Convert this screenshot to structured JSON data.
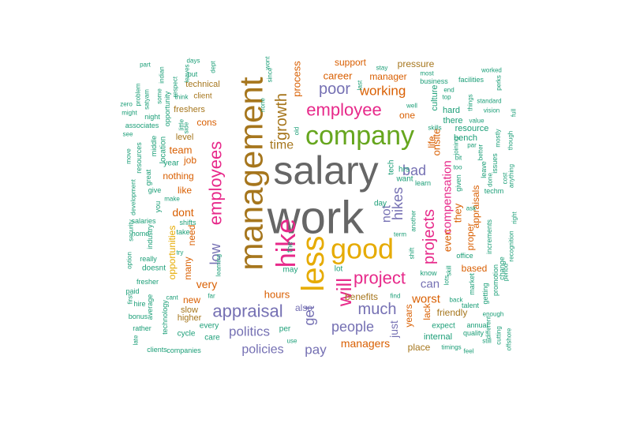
{
  "palette": {
    "teal": "#1b9e77",
    "orange": "#d95f02",
    "purple": "#7570b3",
    "pink": "#e7298a",
    "green": "#66a61e",
    "gold": "#e6ab02",
    "brown": "#a6761d",
    "gray": "#666666"
  },
  "words": [
    {
      "text": "salary",
      "color": "gray"
    },
    {
      "text": "work",
      "color": "gray"
    },
    {
      "text": "management",
      "color": "brown"
    },
    {
      "text": "company",
      "color": "green"
    },
    {
      "text": "good",
      "color": "gold"
    },
    {
      "text": "less",
      "color": "gold"
    },
    {
      "text": "hike",
      "color": "pink"
    },
    {
      "text": "employee",
      "color": "pink"
    },
    {
      "text": "employees",
      "color": "pink"
    },
    {
      "text": "project",
      "color": "pink"
    },
    {
      "text": "projects",
      "color": "pink"
    },
    {
      "text": "will",
      "color": "pink"
    },
    {
      "text": "appraisal",
      "color": "purple"
    },
    {
      "text": "much",
      "color": "purple"
    },
    {
      "text": "people",
      "color": "purple"
    },
    {
      "text": "politics",
      "color": "purple"
    },
    {
      "text": "poor",
      "color": "purple"
    },
    {
      "text": "bad",
      "color": "purple"
    },
    {
      "text": "hikes",
      "color": "purple"
    },
    {
      "text": "growth",
      "color": "brown"
    },
    {
      "text": "get",
      "color": "purple"
    },
    {
      "text": "low",
      "color": "purple"
    },
    {
      "text": "working",
      "color": "orange"
    },
    {
      "text": "time",
      "color": "brown"
    },
    {
      "text": "process",
      "color": "orange"
    },
    {
      "text": "career",
      "color": "orange"
    },
    {
      "text": "support",
      "color": "orange"
    },
    {
      "text": "manager",
      "color": "orange"
    },
    {
      "text": "pressure",
      "color": "brown"
    },
    {
      "text": "one",
      "color": "orange"
    },
    {
      "text": "compensation",
      "color": "pink"
    },
    {
      "text": "even",
      "color": "orange"
    },
    {
      "text": "onsite",
      "color": "orange"
    },
    {
      "text": "life",
      "color": "orange"
    },
    {
      "text": "dont",
      "color": "orange"
    },
    {
      "text": "like",
      "color": "orange"
    },
    {
      "text": "team",
      "color": "orange"
    },
    {
      "text": "nothing",
      "color": "orange"
    },
    {
      "text": "cons",
      "color": "orange"
    },
    {
      "text": "job",
      "color": "orange"
    },
    {
      "text": "level",
      "color": "brown"
    },
    {
      "text": "freshers",
      "color": "brown"
    },
    {
      "text": "technical",
      "color": "brown"
    },
    {
      "text": "client",
      "color": "brown"
    },
    {
      "text": "opportunities",
      "color": "gold"
    },
    {
      "text": "many",
      "color": "orange"
    },
    {
      "text": "need",
      "color": "orange"
    },
    {
      "text": "very",
      "color": "orange"
    },
    {
      "text": "new",
      "color": "orange"
    },
    {
      "text": "slow",
      "color": "brown"
    },
    {
      "text": "higher",
      "color": "brown"
    },
    {
      "text": "hours",
      "color": "orange"
    },
    {
      "text": "also",
      "color": "purple"
    },
    {
      "text": "benefits",
      "color": "brown"
    },
    {
      "text": "can",
      "color": "purple"
    },
    {
      "text": "worst",
      "color": "orange"
    },
    {
      "text": "friendly",
      "color": "brown"
    },
    {
      "text": "managers",
      "color": "orange"
    },
    {
      "text": "policies",
      "color": "purple"
    },
    {
      "text": "pay",
      "color": "purple"
    },
    {
      "text": "internal",
      "color": "teal"
    },
    {
      "text": "place",
      "color": "brown"
    },
    {
      "text": "years",
      "color": "orange"
    },
    {
      "text": "just",
      "color": "purple"
    },
    {
      "text": "not",
      "color": "purple"
    },
    {
      "text": "they",
      "color": "orange"
    },
    {
      "text": "appraisals",
      "color": "orange"
    },
    {
      "text": "proper",
      "color": "orange"
    },
    {
      "text": "based",
      "color": "orange"
    },
    {
      "text": "bench",
      "color": "teal"
    },
    {
      "text": "resource",
      "color": "teal"
    },
    {
      "text": "culture",
      "color": "teal"
    },
    {
      "text": "hard",
      "color": "teal"
    },
    {
      "text": "there",
      "color": "teal"
    },
    {
      "text": "tech",
      "color": "teal"
    },
    {
      "text": "want",
      "color": "teal"
    },
    {
      "text": "hrs",
      "color": "teal"
    },
    {
      "text": "learn",
      "color": "teal"
    },
    {
      "text": "day",
      "color": "teal"
    },
    {
      "text": "term",
      "color": "teal"
    },
    {
      "text": "know",
      "color": "teal"
    },
    {
      "text": "lack",
      "color": "orange"
    },
    {
      "text": "expect",
      "color": "teal"
    },
    {
      "text": "every",
      "color": "teal"
    },
    {
      "text": "care",
      "color": "teal"
    },
    {
      "text": "per",
      "color": "teal"
    },
    {
      "text": "cycle",
      "color": "teal"
    },
    {
      "text": "quality",
      "color": "teal"
    },
    {
      "text": "annual",
      "color": "teal"
    },
    {
      "text": "office",
      "color": "teal"
    },
    {
      "text": "increments",
      "color": "teal"
    },
    {
      "text": "change",
      "color": "teal"
    },
    {
      "text": "promotion",
      "color": "teal"
    },
    {
      "text": "getting",
      "color": "teal"
    },
    {
      "text": "market",
      "color": "teal"
    },
    {
      "text": "talent",
      "color": "teal"
    },
    {
      "text": "back",
      "color": "teal"
    },
    {
      "text": "enough",
      "color": "teal"
    },
    {
      "text": "facilities",
      "color": "teal"
    },
    {
      "text": "business",
      "color": "teal"
    },
    {
      "text": "skills",
      "color": "teal"
    },
    {
      "text": "stay",
      "color": "teal"
    },
    {
      "text": "worked",
      "color": "teal"
    },
    {
      "text": "vision",
      "color": "teal"
    },
    {
      "text": "standard",
      "color": "teal"
    },
    {
      "text": "leave",
      "color": "teal"
    },
    {
      "text": "issues",
      "color": "teal"
    },
    {
      "text": "better",
      "color": "teal"
    },
    {
      "text": "done",
      "color": "teal"
    },
    {
      "text": "cost",
      "color": "teal"
    },
    {
      "text": "mostly",
      "color": "teal"
    },
    {
      "text": "techm",
      "color": "teal"
    },
    {
      "text": "though",
      "color": "teal"
    },
    {
      "text": "anything",
      "color": "teal"
    },
    {
      "text": "perks",
      "color": "teal"
    },
    {
      "text": "full",
      "color": "teal"
    },
    {
      "text": "given",
      "color": "teal"
    },
    {
      "text": "most",
      "color": "teal"
    },
    {
      "text": "well",
      "color": "teal"
    },
    {
      "text": "top",
      "color": "teal"
    },
    {
      "text": "end",
      "color": "teal"
    },
    {
      "text": "things",
      "color": "teal"
    },
    {
      "text": "value",
      "color": "teal"
    },
    {
      "text": "ask",
      "color": "teal"
    },
    {
      "text": "par",
      "color": "teal"
    },
    {
      "text": "bit",
      "color": "teal"
    },
    {
      "text": "too",
      "color": "teal"
    },
    {
      "text": "shift",
      "color": "teal"
    },
    {
      "text": "another",
      "color": "teal"
    },
    {
      "text": "lots",
      "color": "teal"
    },
    {
      "text": "skill",
      "color": "teal"
    },
    {
      "text": "joining",
      "color": "teal"
    },
    {
      "text": "timings",
      "color": "teal"
    },
    {
      "text": "still",
      "color": "teal"
    },
    {
      "text": "cutting",
      "color": "teal"
    },
    {
      "text": "offshore",
      "color": "teal"
    },
    {
      "text": "feel",
      "color": "teal"
    },
    {
      "text": "different",
      "color": "teal"
    },
    {
      "text": "period",
      "color": "teal"
    },
    {
      "text": "recognition",
      "color": "teal"
    },
    {
      "text": "right",
      "color": "teal"
    },
    {
      "text": "find",
      "color": "teal"
    },
    {
      "text": "may",
      "color": "teal"
    },
    {
      "text": "the",
      "color": "teal"
    },
    {
      "text": "use",
      "color": "teal"
    },
    {
      "text": "lot",
      "color": "teal"
    },
    {
      "text": "old",
      "color": "teal"
    },
    {
      "text": "since",
      "color": "teal"
    },
    {
      "text": "none",
      "color": "teal"
    },
    {
      "text": "wont",
      "color": "teal"
    },
    {
      "text": "last",
      "color": "teal"
    },
    {
      "text": "companies",
      "color": "teal"
    },
    {
      "text": "clients",
      "color": "teal"
    },
    {
      "text": "technology",
      "color": "teal"
    },
    {
      "text": "rather",
      "color": "teal"
    },
    {
      "text": "late",
      "color": "teal"
    },
    {
      "text": "bonus",
      "color": "teal"
    },
    {
      "text": "average",
      "color": "teal"
    },
    {
      "text": "hire",
      "color": "teal"
    },
    {
      "text": "first",
      "color": "teal"
    },
    {
      "text": "fresher",
      "color": "teal"
    },
    {
      "text": "paid",
      "color": "teal"
    },
    {
      "text": "cant",
      "color": "teal"
    },
    {
      "text": "far",
      "color": "teal"
    },
    {
      "text": "really",
      "color": "teal"
    },
    {
      "text": "doesnt",
      "color": "teal"
    },
    {
      "text": "try",
      "color": "teal"
    },
    {
      "text": "learning",
      "color": "teal"
    },
    {
      "text": "option",
      "color": "teal"
    },
    {
      "text": "security",
      "color": "teal"
    },
    {
      "text": "development",
      "color": "teal"
    },
    {
      "text": "home",
      "color": "teal"
    },
    {
      "text": "salaries",
      "color": "teal"
    },
    {
      "text": "industry",
      "color": "teal"
    },
    {
      "text": "you",
      "color": "teal"
    },
    {
      "text": "take",
      "color": "teal"
    },
    {
      "text": "shifts",
      "color": "teal"
    },
    {
      "text": "make",
      "color": "teal"
    },
    {
      "text": "give",
      "color": "teal"
    },
    {
      "text": "great",
      "color": "teal"
    },
    {
      "text": "resources",
      "color": "teal"
    },
    {
      "text": "move",
      "color": "teal"
    },
    {
      "text": "see",
      "color": "teal"
    },
    {
      "text": "associates",
      "color": "teal"
    },
    {
      "text": "might",
      "color": "teal"
    },
    {
      "text": "zero",
      "color": "teal"
    },
    {
      "text": "problem",
      "color": "teal"
    },
    {
      "text": "night",
      "color": "teal"
    },
    {
      "text": "middle",
      "color": "teal"
    },
    {
      "text": "location",
      "color": "teal"
    },
    {
      "text": "year",
      "color": "teal"
    },
    {
      "text": "satyam",
      "color": "teal"
    },
    {
      "text": "some",
      "color": "teal"
    },
    {
      "text": "indian",
      "color": "teal"
    },
    {
      "text": "opportunity",
      "color": "teal"
    },
    {
      "text": "respect",
      "color": "teal"
    },
    {
      "text": "leaves",
      "color": "teal"
    },
    {
      "text": "part",
      "color": "teal"
    },
    {
      "text": "put",
      "color": "teal"
    },
    {
      "text": "days",
      "color": "teal"
    },
    {
      "text": "think",
      "color": "teal"
    },
    {
      "text": "side",
      "color": "teal"
    },
    {
      "text": "little",
      "color": "teal"
    },
    {
      "text": "dept",
      "color": "teal"
    }
  ]
}
